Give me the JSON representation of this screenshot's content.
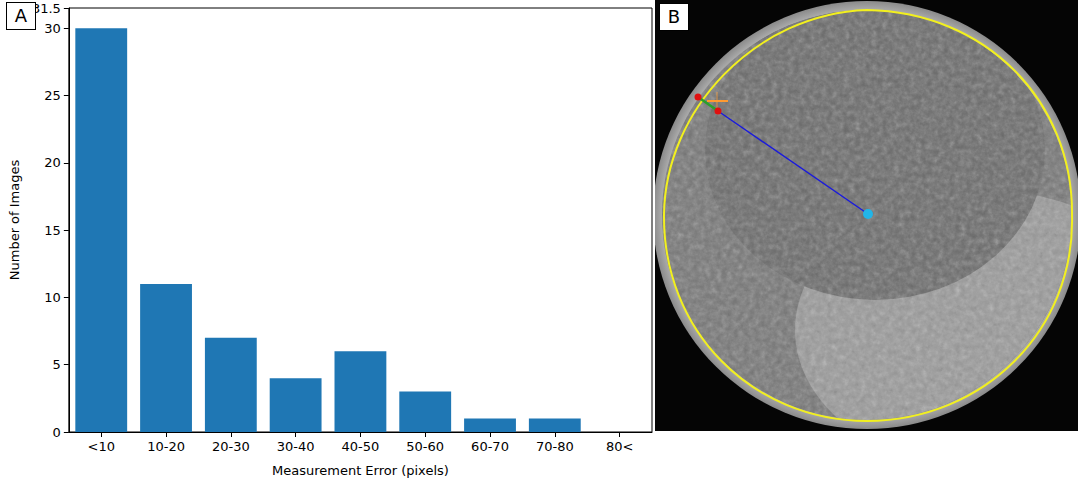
{
  "chart_data": {
    "type": "bar",
    "panel_label": "A",
    "xlabel": "Measurement Error (pixels)",
    "ylabel": "Number of Images",
    "categories": [
      "<10",
      "10-20",
      "20-30",
      "30-40",
      "40-50",
      "50-60",
      "60-70",
      "70-80",
      "80<"
    ],
    "values": [
      30,
      11,
      7,
      4,
      6,
      3,
      1,
      1,
      0
    ],
    "color": "#1f77b4",
    "ylim": [
      0,
      31.5
    ],
    "yticks": [
      0,
      5,
      10,
      15,
      20,
      25,
      30
    ],
    "grid": false
  },
  "image": {
    "panel_label": "B"
  }
}
